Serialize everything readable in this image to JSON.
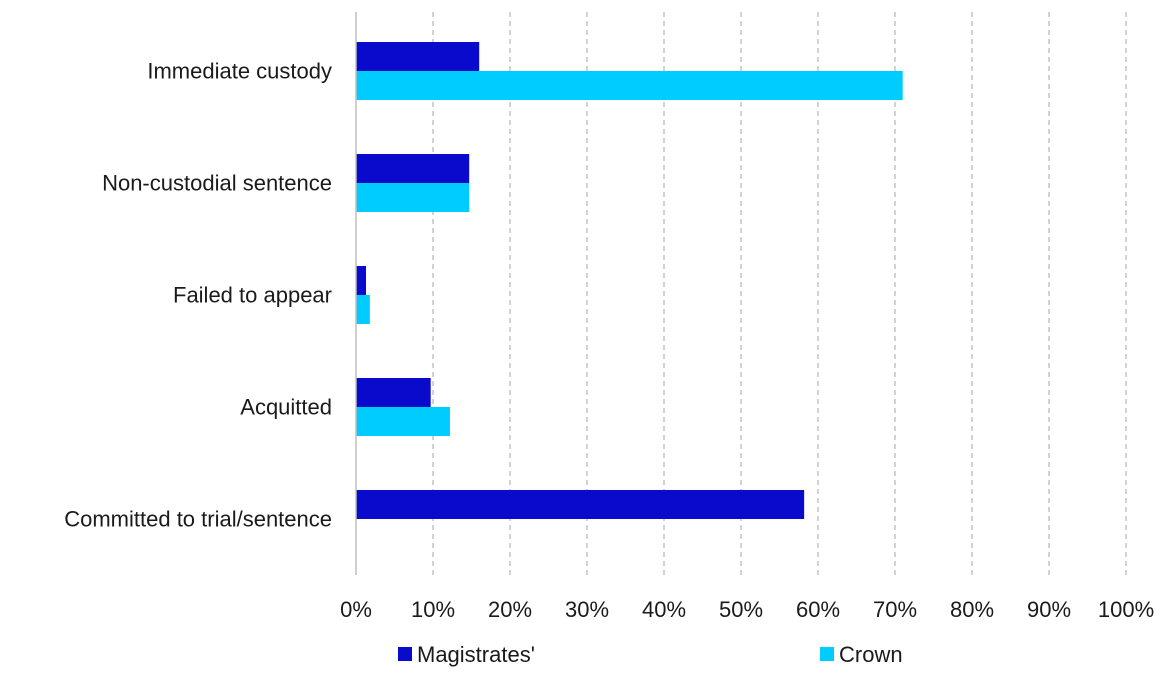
{
  "chart_data": {
    "type": "bar",
    "orientation": "horizontal",
    "categories": [
      "Immediate custody",
      "Non-custodial sentence",
      "Failed to appear",
      "Acquitted",
      "Committed to trial/sentence"
    ],
    "series": [
      {
        "name": "Magistrates'",
        "color": "#0a0acc",
        "values": [
          16,
          14.7,
          1.3,
          9.7,
          58.2
        ]
      },
      {
        "name": "Crown",
        "color": "#00ccff",
        "values": [
          71,
          14.7,
          1.8,
          12.2,
          0
        ]
      }
    ],
    "xlim": [
      0,
      100
    ],
    "xticks": [
      "0%",
      "10%",
      "20%",
      "30%",
      "40%",
      "50%",
      "60%",
      "70%",
      "80%",
      "90%",
      "100%"
    ],
    "grid": "vertical dashed",
    "legend_position": "bottom",
    "title": "",
    "xlabel": "",
    "ylabel": ""
  }
}
